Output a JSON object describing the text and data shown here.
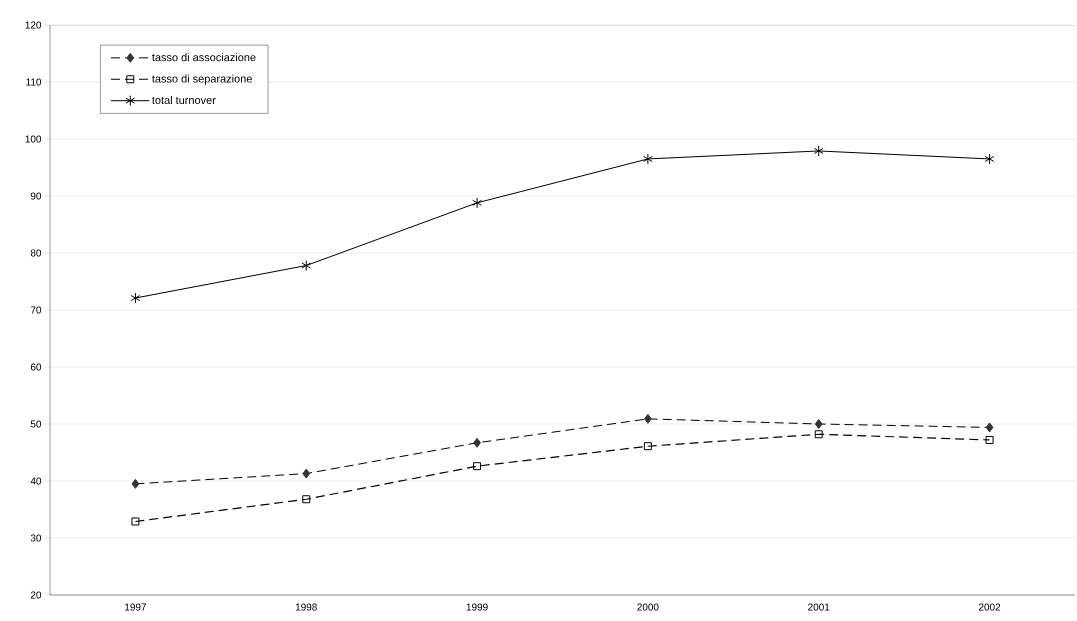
{
  "chart_data": {
    "type": "line",
    "categories": [
      "1997",
      "1998",
      "1999",
      "2000",
      "2001",
      "2002"
    ],
    "series": [
      {
        "name": "tasso di associazione",
        "color": "#000000",
        "marker": "diamond",
        "line_style": "dashed",
        "values": [
          39.5,
          41.3,
          46.7,
          50.9,
          50.0,
          49.4
        ]
      },
      {
        "name": "tasso di separazione",
        "color": "#000000",
        "marker": "square",
        "line_style": "dashed",
        "values": [
          32.9,
          36.8,
          42.6,
          46.1,
          48.2,
          47.2
        ]
      },
      {
        "name": "total turnover",
        "color": "#000000",
        "marker": "cross",
        "line_style": "solid",
        "values": [
          72.1,
          77.8,
          88.8,
          96.5,
          97.9,
          96.5
        ]
      }
    ],
    "ylim": [
      20,
      120
    ],
    "yticks": [
      20,
      30,
      40,
      50,
      60,
      70,
      80,
      90,
      100,
      110,
      120
    ],
    "grid": "y",
    "legend": "top left"
  }
}
